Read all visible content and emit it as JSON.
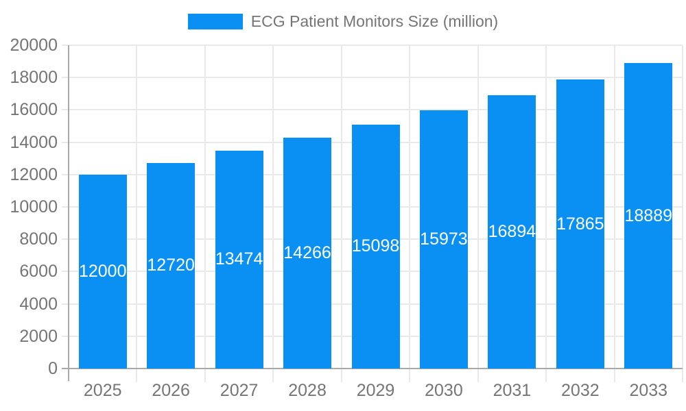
{
  "chart_data": {
    "type": "bar",
    "title": "ECG Patient Monitors Size (million)",
    "categories": [
      "2025",
      "2026",
      "2027",
      "2028",
      "2029",
      "2030",
      "2031",
      "2032",
      "2033"
    ],
    "series": [
      {
        "name": "ECG Patient Monitors Size (million)",
        "values": [
          12000,
          12720,
          13474,
          14266,
          15098,
          15973,
          16894,
          17865,
          18889
        ]
      }
    ],
    "bar_value_labels": [
      "12000",
      "12720",
      "13474",
      "14266",
      "15098",
      "15973",
      "16894",
      "17865",
      "18889"
    ],
    "xlabel": "",
    "ylabel": "",
    "ylim": [
      0,
      20000
    ],
    "ytick_step": 2000,
    "ytick_labels": [
      "0",
      "2000",
      "4000",
      "6000",
      "8000",
      "10000",
      "12000",
      "14000",
      "16000",
      "18000",
      "20000"
    ],
    "grid": {
      "horizontal": true,
      "vertical": true
    },
    "legend_position": "top-center",
    "value_label_position": "inside-center",
    "colors": {
      "bar": "#0a90f2",
      "bar_label": "#ffffff",
      "axis_text": "#757575",
      "grid_line": "#e9e9e9",
      "axis_line": "#a9a9a9",
      "background": "#ffffff"
    }
  }
}
